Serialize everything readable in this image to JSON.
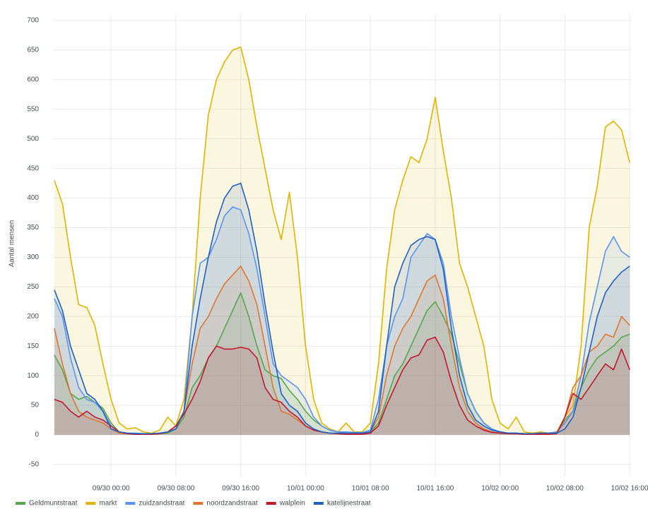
{
  "chart_data": {
    "type": "area",
    "y_label": "Aantal mensen",
    "x": [
      "09/29 17:00",
      "09/29 18:00",
      "09/29 19:00",
      "09/29 20:00",
      "09/29 21:00",
      "09/29 22:00",
      "09/29 23:00",
      "09/30 00:00",
      "09/30 01:00",
      "09/30 02:00",
      "09/30 03:00",
      "09/30 04:00",
      "09/30 05:00",
      "09/30 06:00",
      "09/30 07:00",
      "09/30 08:00",
      "09/30 09:00",
      "09/30 10:00",
      "09/30 11:00",
      "09/30 12:00",
      "09/30 13:00",
      "09/30 14:00",
      "09/30 15:00",
      "09/30 16:00",
      "09/30 17:00",
      "09/30 18:00",
      "09/30 19:00",
      "09/30 20:00",
      "09/30 21:00",
      "09/30 22:00",
      "09/30 23:00",
      "10/01 00:00",
      "10/01 01:00",
      "10/01 02:00",
      "10/01 03:00",
      "10/01 04:00",
      "10/01 05:00",
      "10/01 06:00",
      "10/01 07:00",
      "10/01 08:00",
      "10/01 09:00",
      "10/01 10:00",
      "10/01 11:00",
      "10/01 12:00",
      "10/01 13:00",
      "10/01 14:00",
      "10/01 15:00",
      "10/01 16:00",
      "10/01 17:00",
      "10/01 18:00",
      "10/01 19:00",
      "10/01 20:00",
      "10/01 21:00",
      "10/01 22:00",
      "10/01 23:00",
      "10/02 00:00",
      "10/02 01:00",
      "10/02 02:00",
      "10/02 03:00",
      "10/02 04:00",
      "10/02 05:00",
      "10/02 06:00",
      "10/02 07:00",
      "10/02 08:00",
      "10/02 09:00",
      "10/02 10:00",
      "10/02 11:00",
      "10/02 12:00",
      "10/02 13:00",
      "10/02 14:00",
      "10/02 15:00",
      "10/02 16:00"
    ],
    "xlim": [
      "09/29 16:50",
      "10/02 16:10"
    ],
    "xticks": [
      "09/30 00:00",
      "09/30 08:00",
      "09/30 16:00",
      "10/01 00:00",
      "10/01 08:00",
      "10/01 16:00",
      "10/02 00:00",
      "10/02 08:00",
      "10/02 16:00"
    ],
    "ylim": [
      -70,
      710
    ],
    "yticks": [
      -50,
      0,
      50,
      100,
      150,
      200,
      250,
      300,
      350,
      400,
      450,
      500,
      550,
      600,
      650,
      700
    ],
    "grid": true,
    "series": [
      {
        "name": "Geldmuntstraat",
        "color": "#56a64b",
        "values": [
          135,
          110,
          70,
          60,
          65,
          55,
          45,
          20,
          5,
          3,
          2,
          2,
          2,
          2,
          3,
          10,
          30,
          80,
          100,
          130,
          150,
          180,
          210,
          240,
          200,
          150,
          110,
          100,
          95,
          75,
          60,
          40,
          25,
          15,
          8,
          5,
          3,
          3,
          3,
          5,
          20,
          60,
          100,
          120,
          150,
          180,
          210,
          225,
          200,
          170,
          120,
          70,
          40,
          20,
          10,
          5,
          3,
          3,
          2,
          2,
          2,
          3,
          5,
          25,
          40,
          80,
          110,
          130,
          140,
          150,
          165,
          170
        ]
      },
      {
        "name": "markt",
        "color": "#e0b400",
        "values": [
          430,
          390,
          300,
          220,
          215,
          185,
          120,
          60,
          20,
          10,
          12,
          5,
          3,
          8,
          30,
          15,
          60,
          200,
          400,
          540,
          600,
          630,
          650,
          655,
          600,
          520,
          450,
          380,
          330,
          410,
          300,
          150,
          60,
          20,
          10,
          5,
          20,
          5,
          5,
          20,
          120,
          280,
          380,
          430,
          470,
          460,
          500,
          570,
          480,
          400,
          290,
          250,
          200,
          150,
          60,
          20,
          10,
          30,
          5,
          3,
          5,
          3,
          5,
          30,
          50,
          150,
          350,
          420,
          520,
          530,
          515,
          460
        ]
      },
      {
        "name": "zuidzandstraat",
        "color": "#5794f2",
        "values": [
          230,
          200,
          130,
          80,
          60,
          55,
          40,
          15,
          5,
          3,
          3,
          2,
          2,
          3,
          5,
          10,
          40,
          200,
          290,
          300,
          330,
          370,
          385,
          380,
          340,
          280,
          200,
          120,
          100,
          90,
          80,
          60,
          30,
          15,
          8,
          5,
          5,
          4,
          4,
          8,
          60,
          150,
          200,
          230,
          300,
          320,
          340,
          330,
          290,
          200,
          130,
          70,
          40,
          20,
          10,
          5,
          3,
          3,
          2,
          2,
          3,
          3,
          5,
          20,
          40,
          100,
          190,
          250,
          310,
          335,
          310,
          300
        ]
      },
      {
        "name": "noordzandstraat",
        "color": "#e0752d",
        "values": [
          180,
          120,
          70,
          40,
          30,
          25,
          20,
          10,
          3,
          2,
          1,
          1,
          1,
          2,
          5,
          15,
          40,
          120,
          180,
          200,
          230,
          255,
          270,
          285,
          260,
          220,
          150,
          80,
          40,
          35,
          25,
          15,
          8,
          5,
          3,
          2,
          2,
          2,
          2,
          5,
          30,
          100,
          150,
          180,
          200,
          230,
          260,
          270,
          230,
          150,
          80,
          40,
          20,
          10,
          5,
          3,
          2,
          2,
          1,
          1,
          1,
          2,
          3,
          30,
          80,
          100,
          140,
          150,
          170,
          165,
          200,
          185
        ]
      },
      {
        "name": "walplein",
        "color": "#c4162a",
        "values": [
          60,
          55,
          40,
          30,
          40,
          30,
          25,
          15,
          5,
          2,
          1,
          1,
          1,
          2,
          5,
          15,
          35,
          60,
          90,
          130,
          150,
          145,
          145,
          148,
          145,
          130,
          80,
          60,
          55,
          40,
          30,
          15,
          8,
          5,
          3,
          2,
          1,
          1,
          1,
          3,
          15,
          50,
          80,
          110,
          130,
          135,
          160,
          165,
          140,
          90,
          50,
          25,
          15,
          8,
          4,
          3,
          2,
          2,
          1,
          1,
          1,
          1,
          2,
          30,
          70,
          60,
          80,
          100,
          120,
          110,
          145,
          110
        ]
      },
      {
        "name": "katelijnestraat",
        "color": "#1f60c4",
        "values": [
          245,
          210,
          150,
          110,
          70,
          60,
          40,
          10,
          5,
          3,
          2,
          2,
          2,
          3,
          5,
          10,
          40,
          150,
          230,
          300,
          360,
          400,
          420,
          425,
          380,
          310,
          220,
          140,
          70,
          50,
          40,
          20,
          10,
          5,
          3,
          3,
          3,
          3,
          3,
          5,
          40,
          150,
          250,
          290,
          320,
          330,
          335,
          330,
          280,
          180,
          100,
          50,
          25,
          15,
          8,
          5,
          3,
          3,
          2,
          2,
          3,
          3,
          3,
          10,
          30,
          80,
          140,
          200,
          240,
          260,
          275,
          285
        ]
      }
    ]
  }
}
